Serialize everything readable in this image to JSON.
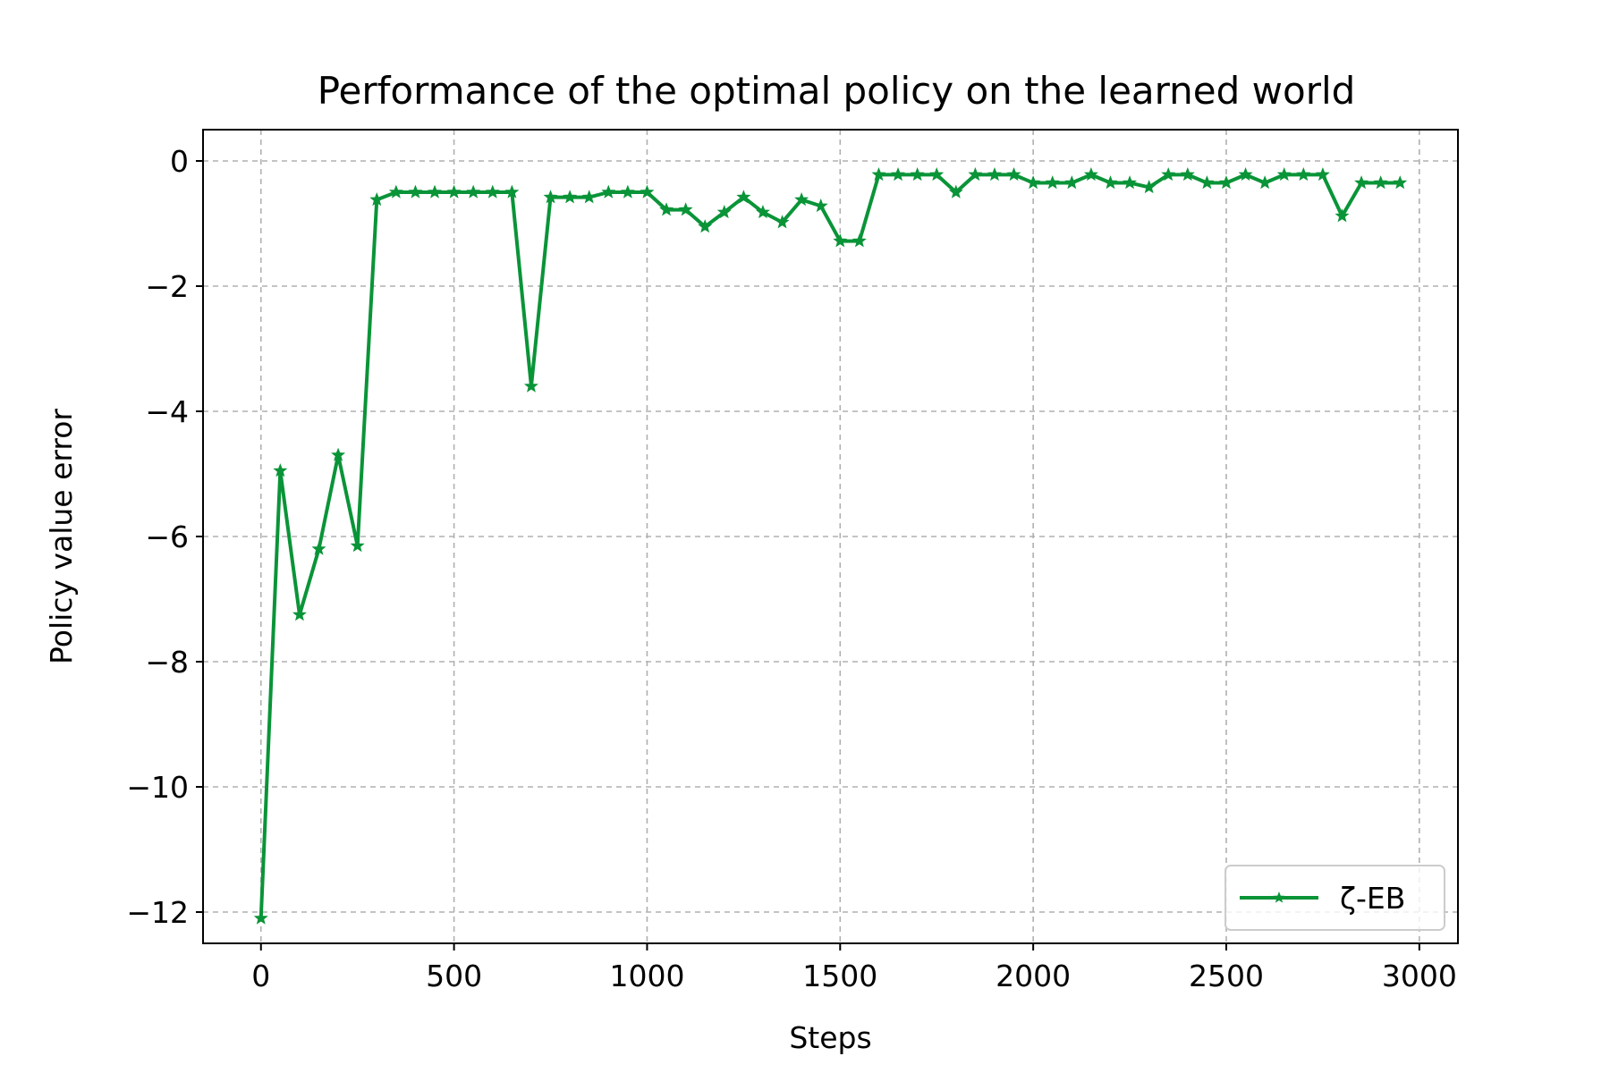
{
  "chart_data": {
    "type": "line",
    "title": "Performance of the optimal policy on the learned world",
    "xlabel": "Steps",
    "ylabel": "Policy value error",
    "xlim": [
      -150,
      3100
    ],
    "ylim": [
      -12.5,
      0.5
    ],
    "xticks": [
      0,
      500,
      1000,
      1500,
      2000,
      2500,
      3000
    ],
    "xtick_labels": [
      "0",
      "500",
      "1000",
      "1500",
      "2000",
      "2500",
      "3000"
    ],
    "yticks": [
      0,
      -2,
      -4,
      -6,
      -8,
      -10,
      -12
    ],
    "ytick_labels": [
      "0",
      "−2",
      "−4",
      "−6",
      "−8",
      "−10",
      "−12"
    ],
    "grid": true,
    "legend_position": "lower-right",
    "series": [
      {
        "name": "ζ-EB",
        "color": "#0a9438",
        "marker": "star",
        "x": [
          0,
          50,
          100,
          150,
          200,
          250,
          300,
          350,
          400,
          450,
          500,
          550,
          600,
          650,
          700,
          750,
          800,
          850,
          900,
          950,
          1000,
          1050,
          1100,
          1150,
          1200,
          1250,
          1300,
          1350,
          1400,
          1450,
          1500,
          1550,
          1600,
          1650,
          1700,
          1750,
          1800,
          1850,
          1900,
          1950,
          2000,
          2050,
          2100,
          2150,
          2200,
          2250,
          2300,
          2350,
          2400,
          2450,
          2500,
          2550,
          2600,
          2650,
          2700,
          2750,
          2800,
          2850,
          2900,
          2950
        ],
        "y": [
          -12.1,
          -4.95,
          -7.25,
          -6.2,
          -4.7,
          -6.15,
          -0.62,
          -0.5,
          -0.5,
          -0.5,
          -0.5,
          -0.5,
          -0.5,
          -0.5,
          -3.6,
          -0.58,
          -0.58,
          -0.58,
          -0.5,
          -0.5,
          -0.5,
          -0.78,
          -0.78,
          -1.05,
          -0.82,
          -0.58,
          -0.82,
          -0.98,
          -0.62,
          -0.72,
          -1.28,
          -1.28,
          -0.22,
          -0.22,
          -0.22,
          -0.22,
          -0.5,
          -0.22,
          -0.22,
          -0.22,
          -0.35,
          -0.35,
          -0.35,
          -0.22,
          -0.35,
          -0.35,
          -0.42,
          -0.22,
          -0.22,
          -0.35,
          -0.35,
          -0.22,
          -0.35,
          -0.22,
          -0.22,
          -0.22,
          -0.88,
          -0.35,
          -0.35,
          -0.35
        ]
      }
    ]
  }
}
